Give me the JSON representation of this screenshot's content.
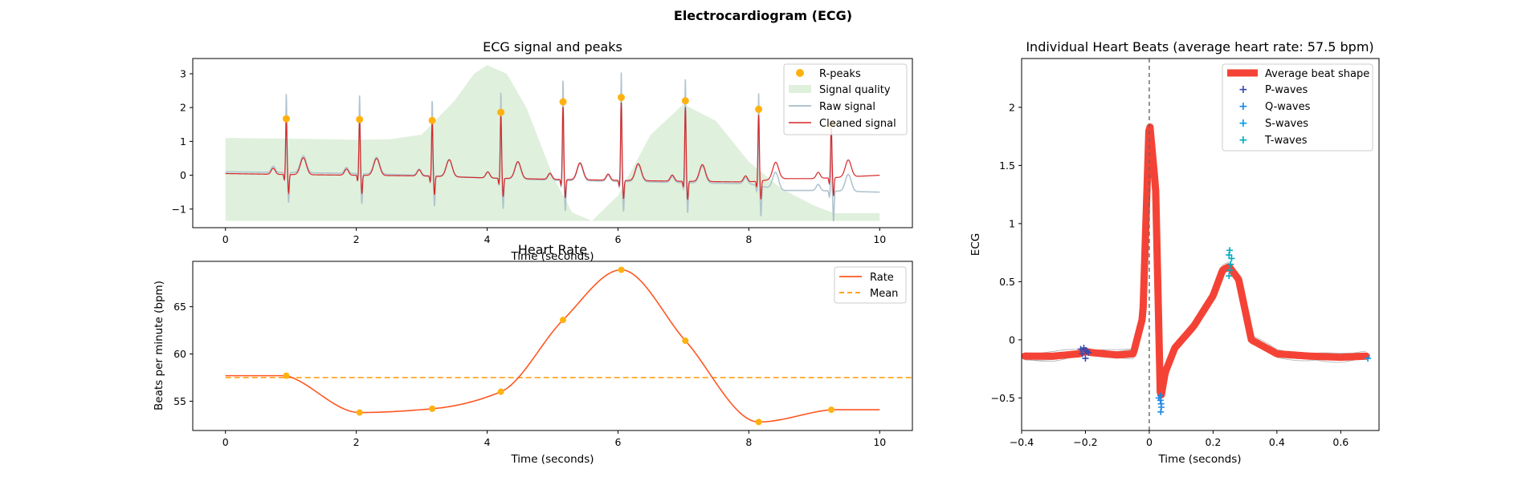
{
  "suptitle": "Electrocardiogram (ECG)",
  "chart_data": [
    {
      "type": "line",
      "title": "ECG signal and peaks",
      "xlabel": "Time (seconds)",
      "ylabel": "",
      "xlim": [
        -0.5,
        10.5
      ],
      "ylim": [
        -1.55,
        3.45
      ],
      "xticks": [
        0,
        2,
        4,
        6,
        8,
        10
      ],
      "yticks": [
        -1,
        0,
        1,
        2,
        3
      ],
      "legend_position": "top-right",
      "peak_times": [
        0.93,
        2.05,
        3.16,
        4.21,
        5.16,
        6.05,
        7.03,
        8.15,
        9.26
      ],
      "peak_values": [
        1.67,
        1.65,
        1.62,
        1.86,
        2.17,
        2.3,
        2.2,
        1.95,
        1.5
      ],
      "quality": {
        "x": [
          0,
          1,
          2,
          2.5,
          3,
          3.5,
          3.8,
          4.0,
          4.3,
          4.6,
          5.0,
          5.3,
          5.6,
          6.0,
          6.5,
          7.0,
          7.5,
          8.0,
          8.5,
          9.0,
          9.3,
          10.0
        ],
        "y": [
          1.1,
          1.08,
          1.05,
          1.06,
          1.2,
          2.2,
          3.0,
          3.25,
          3.0,
          2.0,
          0.0,
          -1.1,
          -1.35,
          -0.6,
          1.2,
          2.1,
          1.6,
          0.4,
          -0.4,
          -0.9,
          -1.12,
          -1.12
        ]
      },
      "quality_baseline": -1.35,
      "cleaned_baseline": {
        "x": [
          0,
          1,
          2,
          3,
          4,
          5,
          6,
          7,
          8,
          8.5,
          9,
          10
        ],
        "y": [
          0.05,
          0.02,
          0.0,
          -0.02,
          -0.08,
          -0.12,
          -0.15,
          -0.18,
          -0.2,
          -0.1,
          -0.1,
          0.0
        ]
      },
      "raw_baseline": {
        "x": [
          0,
          1,
          2,
          3,
          4,
          5,
          6,
          7,
          8,
          8.5,
          9,
          10
        ],
        "y": [
          0.1,
          0.08,
          0.05,
          0.0,
          -0.08,
          -0.15,
          -0.18,
          -0.22,
          -0.25,
          -0.45,
          -0.45,
          -0.5
        ]
      },
      "legend": [
        "R-peaks",
        "Signal quality",
        "Raw signal",
        "Cleaned signal"
      ],
      "colors": {
        "peaks": "#FFB20F",
        "quality": "#DFF0DC",
        "raw": "#B0C4CF",
        "cleaned": "#D62728"
      }
    },
    {
      "type": "line",
      "title": "Heart Rate",
      "xlabel": "Time (seconds)",
      "ylabel": "Beats per minute (bpm)",
      "xlim": [
        -0.5,
        10.5
      ],
      "ylim": [
        51.9,
        69.8
      ],
      "xticks": [
        0,
        2,
        4,
        6,
        8,
        10
      ],
      "yticks": [
        55,
        60,
        65
      ],
      "legend_position": "top-right",
      "points_x": [
        0.93,
        2.05,
        3.16,
        4.21,
        5.16,
        6.05,
        7.03,
        8.15,
        9.26
      ],
      "points_y": [
        57.7,
        53.8,
        54.2,
        56.0,
        63.6,
        68.9,
        61.4,
        52.8,
        54.1
      ],
      "mean": 57.5,
      "legend": [
        "Rate",
        "Mean"
      ],
      "colors": {
        "rate": "#FF5722",
        "mean": "#FF9800",
        "points": "#FFB20F"
      }
    },
    {
      "type": "line",
      "title": "Individual Heart Beats (average heart rate: 57.5 bpm)",
      "xlabel": "Time (seconds)",
      "ylabel": "ECG",
      "xlim": [
        -0.4,
        0.72
      ],
      "ylim": [
        -0.78,
        2.42
      ],
      "xticks": [
        -0.4,
        -0.2,
        0.0,
        0.2,
        0.4,
        0.6
      ],
      "yticks": [
        -0.5,
        0.0,
        0.5,
        1.0,
        1.5,
        2.0
      ],
      "legend_position": "top-right",
      "average_beat": {
        "x": [
          -0.39,
          -0.3,
          -0.22,
          -0.2,
          -0.18,
          -0.1,
          -0.05,
          -0.02,
          0.0,
          0.02,
          0.035,
          0.05,
          0.08,
          0.14,
          0.2,
          0.23,
          0.25,
          0.28,
          0.32,
          0.4,
          0.5,
          0.6,
          0.68
        ],
        "y": [
          -0.14,
          -0.14,
          -0.12,
          -0.1,
          -0.11,
          -0.13,
          -0.12,
          0.2,
          1.9,
          1.3,
          -0.52,
          -0.28,
          -0.07,
          0.12,
          0.38,
          0.6,
          0.63,
          0.52,
          0.0,
          -0.12,
          -0.14,
          -0.15,
          -0.14
        ]
      },
      "p_waves": {
        "x": [
          -0.215,
          -0.205,
          -0.2,
          -0.195,
          -0.19,
          -0.21,
          -0.2
        ],
        "y": [
          -0.08,
          -0.07,
          -0.09,
          -0.1,
          -0.11,
          -0.12,
          -0.16
        ]
      },
      "q_waves": {
        "x": [
          0.035,
          0.035,
          0.037,
          0.038,
          0.03,
          0.036
        ],
        "y": [
          -0.48,
          -0.52,
          -0.55,
          -0.58,
          -0.5,
          -0.62
        ]
      },
      "s_waves": {
        "x": [
          0.685
        ],
        "y": [
          -0.16
        ]
      },
      "t_waves": {
        "x": [
          0.25,
          0.252,
          0.255,
          0.258,
          0.25,
          0.252
        ],
        "y": [
          0.55,
          0.6,
          0.65,
          0.7,
          0.73,
          0.77
        ]
      },
      "vline_x": 0.0,
      "legend": [
        "Average beat shape",
        "P-waves",
        "Q-waves",
        "S-waves",
        "T-waves"
      ],
      "colors": {
        "average": "#F44336",
        "p": "#3949AB",
        "q": "#1E88E5",
        "s": "#039BE5",
        "t": "#00ACC1",
        "beats": "#999999"
      }
    }
  ]
}
